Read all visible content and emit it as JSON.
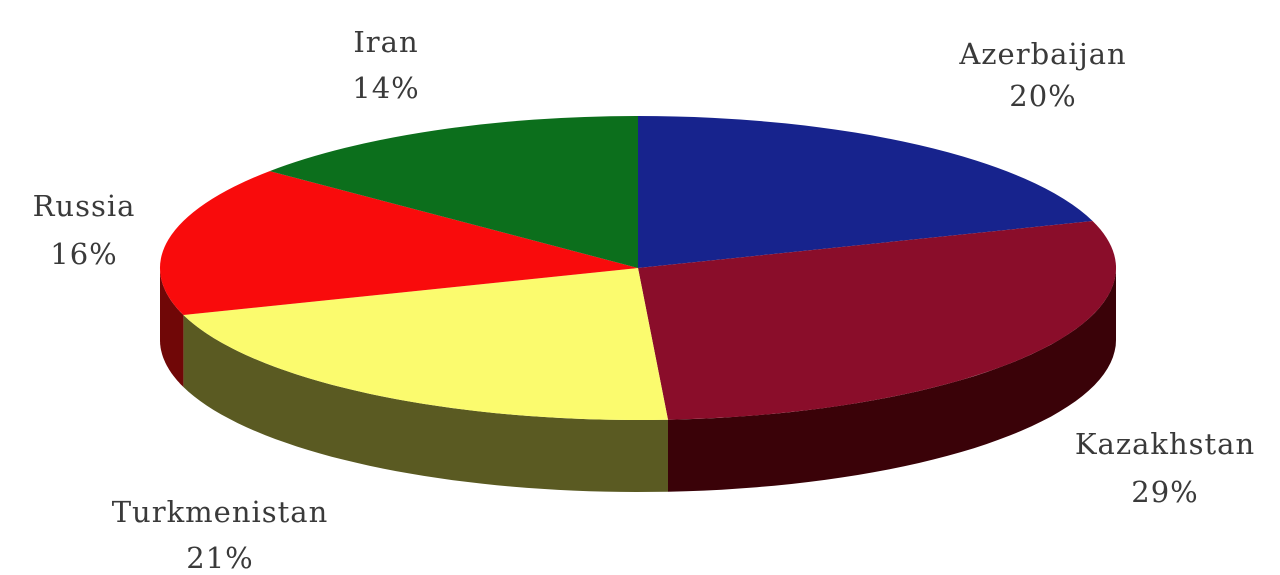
{
  "chart_data": {
    "type": "pie",
    "title": "",
    "slices": [
      {
        "label": "Azerbaijan",
        "value": 20,
        "value_text": "20%",
        "top_color": "#17238d",
        "side_color": "#0a1350"
      },
      {
        "label": "Kazakhstan",
        "value": 29,
        "value_text": "29%",
        "top_color": "#8a0d2a",
        "side_color": "#3a0208"
      },
      {
        "label": "Turkmenistan",
        "value": 21,
        "value_text": "21%",
        "top_color": "#fbfb6e",
        "side_color": "#5a5a22"
      },
      {
        "label": "Russia",
        "value": 16,
        "value_text": "16%",
        "top_color": "#f90b0c",
        "side_color": "#700707"
      },
      {
        "label": "Iran",
        "value": 14,
        "value_text": "14%",
        "top_color": "#0c6f1c",
        "side_color": "#063d0f"
      }
    ]
  }
}
